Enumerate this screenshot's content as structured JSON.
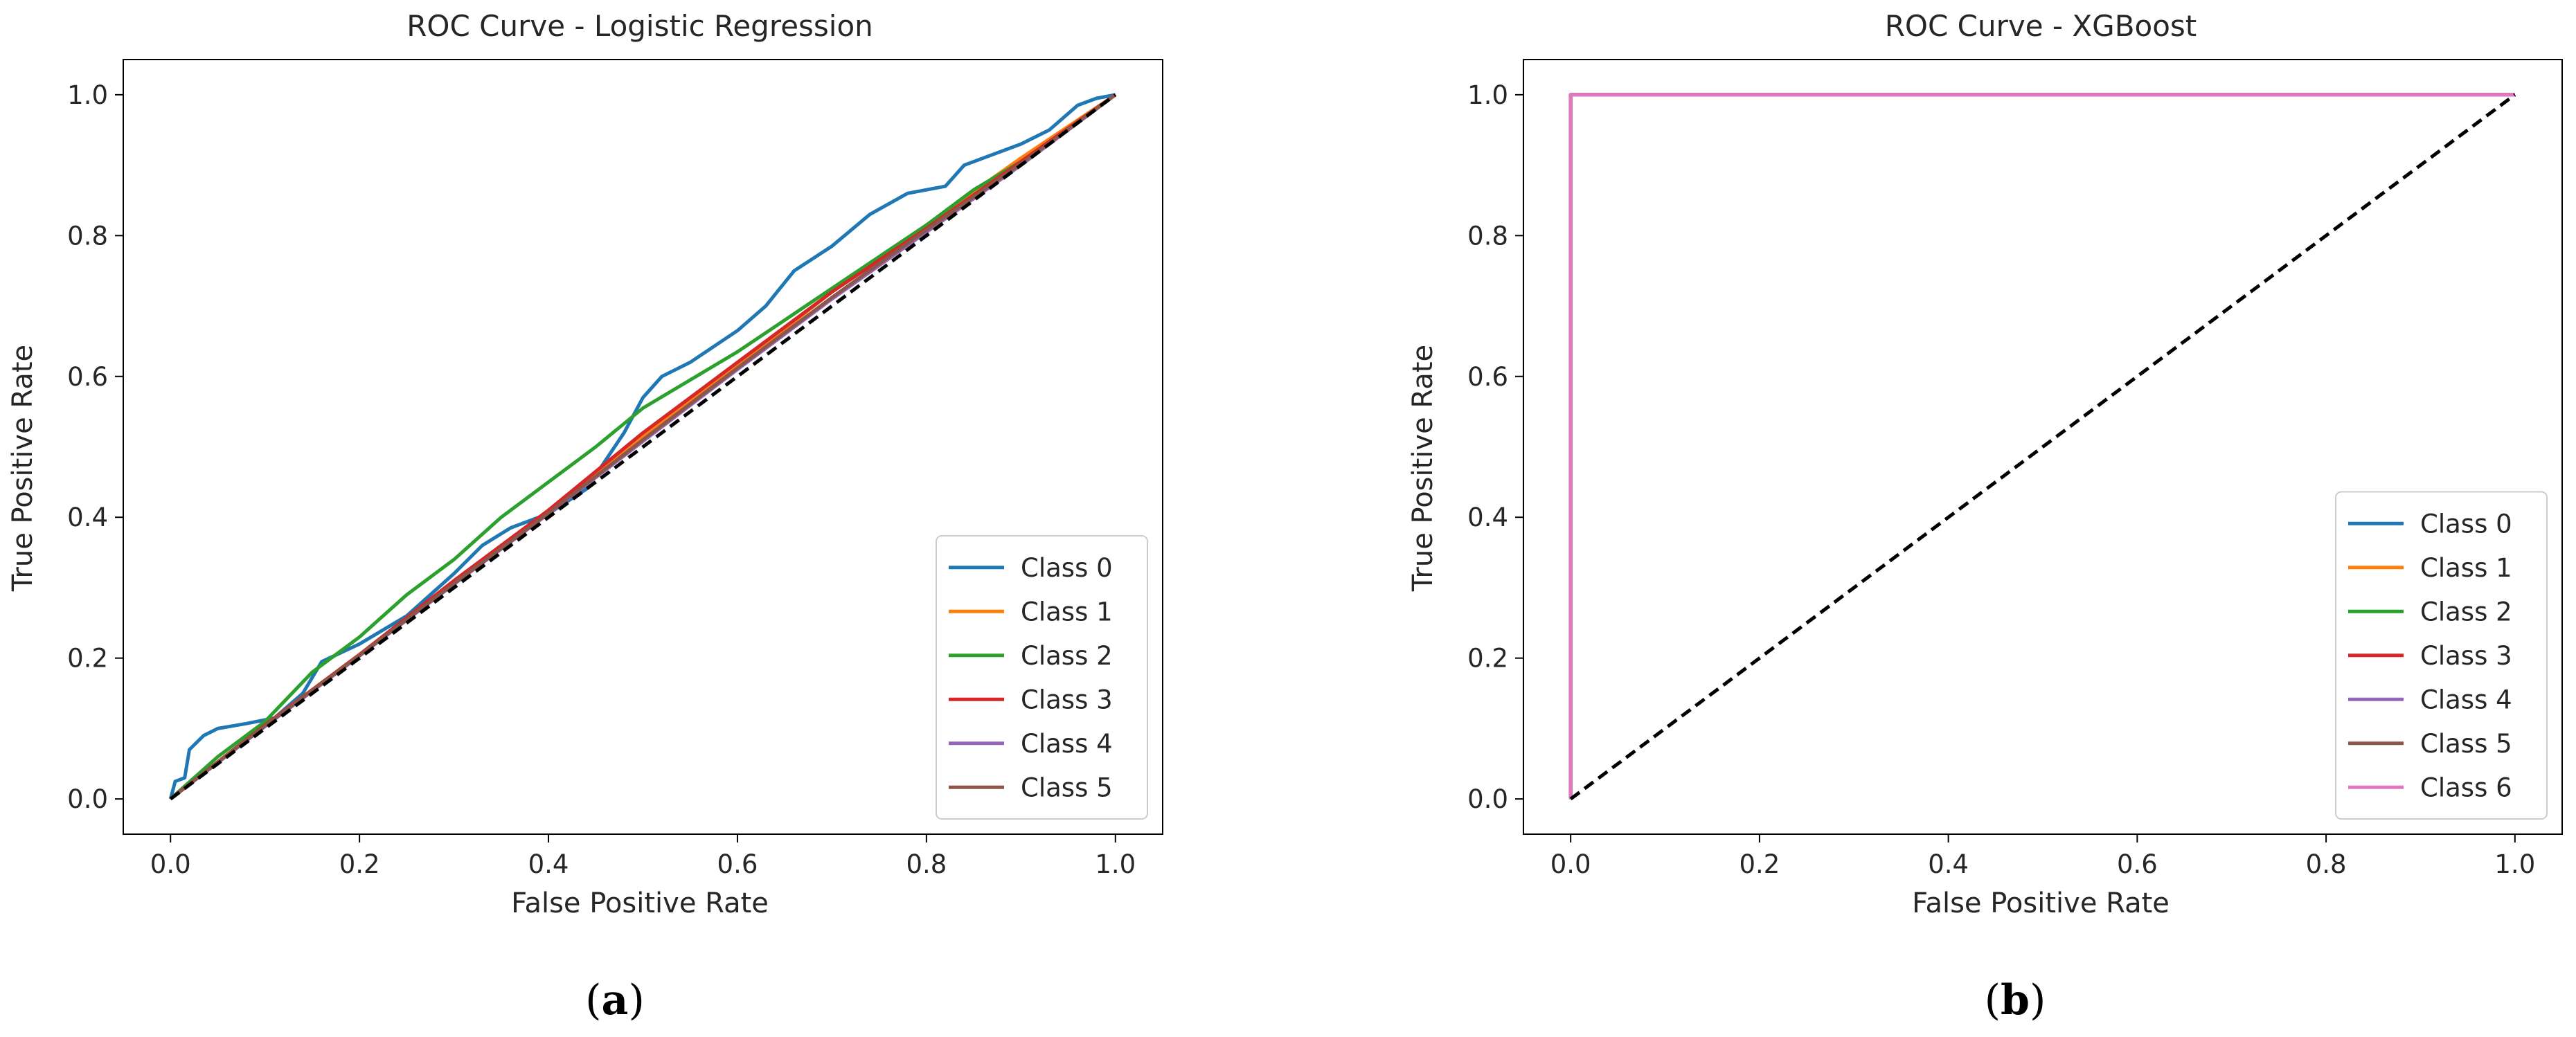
{
  "chart_data": [
    {
      "type": "line",
      "title": "ROC Curve - Logistic Regression",
      "xlabel": "False Positive Rate",
      "ylabel": "True Positive Rate",
      "xlim": [
        -0.05,
        1.05
      ],
      "ylim": [
        -0.05,
        1.05
      ],
      "xticks": [
        0.0,
        0.2,
        0.4,
        0.6,
        0.8,
        1.0
      ],
      "yticks": [
        0.0,
        0.2,
        0.4,
        0.6,
        0.8,
        1.0
      ],
      "tick_labels": [
        "0.0",
        "0.2",
        "0.4",
        "0.6",
        "0.8",
        "1.0"
      ],
      "legend_position": "lower-right",
      "caption": {
        "open": "(",
        "letter": "a",
        "close": ")"
      },
      "series": [
        {
          "name": "Class 0",
          "color": "#1f77b4",
          "points": [
            [
              0,
              0
            ],
            [
              0.005,
              0.025
            ],
            [
              0.015,
              0.03
            ],
            [
              0.02,
              0.07
            ],
            [
              0.035,
              0.09
            ],
            [
              0.05,
              0.1
            ],
            [
              0.08,
              0.107
            ],
            [
              0.11,
              0.115
            ],
            [
              0.14,
              0.15
            ],
            [
              0.16,
              0.195
            ],
            [
              0.2,
              0.22
            ],
            [
              0.25,
              0.26
            ],
            [
              0.3,
              0.32
            ],
            [
              0.33,
              0.36
            ],
            [
              0.36,
              0.385
            ],
            [
              0.4,
              0.405
            ],
            [
              0.44,
              0.44
            ],
            [
              0.48,
              0.52
            ],
            [
              0.5,
              0.57
            ],
            [
              0.52,
              0.6
            ],
            [
              0.55,
              0.62
            ],
            [
              0.6,
              0.665
            ],
            [
              0.63,
              0.7
            ],
            [
              0.66,
              0.75
            ],
            [
              0.7,
              0.785
            ],
            [
              0.74,
              0.83
            ],
            [
              0.78,
              0.86
            ],
            [
              0.82,
              0.87
            ],
            [
              0.84,
              0.9
            ],
            [
              0.87,
              0.915
            ],
            [
              0.9,
              0.93
            ],
            [
              0.93,
              0.95
            ],
            [
              0.96,
              0.985
            ],
            [
              0.98,
              0.995
            ],
            [
              1,
              1
            ]
          ]
        },
        {
          "name": "Class 1",
          "color": "#ff7f0e",
          "points": [
            [
              0,
              0
            ],
            [
              0.1,
              0.105
            ],
            [
              0.2,
              0.205
            ],
            [
              0.3,
              0.305
            ],
            [
              0.4,
              0.41
            ],
            [
              0.5,
              0.515
            ],
            [
              0.6,
              0.615
            ],
            [
              0.7,
              0.72
            ],
            [
              0.8,
              0.815
            ],
            [
              0.9,
              0.91
            ],
            [
              1,
              1
            ]
          ]
        },
        {
          "name": "Class 2",
          "color": "#2ca02c",
          "points": [
            [
              0,
              0
            ],
            [
              0.05,
              0.06
            ],
            [
              0.1,
              0.11
            ],
            [
              0.15,
              0.18
            ],
            [
              0.2,
              0.23
            ],
            [
              0.25,
              0.29
            ],
            [
              0.3,
              0.34
            ],
            [
              0.35,
              0.4
            ],
            [
              0.4,
              0.45
            ],
            [
              0.45,
              0.5
            ],
            [
              0.5,
              0.555
            ],
            [
              0.55,
              0.595
            ],
            [
              0.6,
              0.635
            ],
            [
              0.65,
              0.68
            ],
            [
              0.7,
              0.725
            ],
            [
              0.75,
              0.77
            ],
            [
              0.8,
              0.815
            ],
            [
              0.85,
              0.865
            ],
            [
              0.9,
              0.905
            ],
            [
              0.95,
              0.95
            ],
            [
              1,
              1
            ]
          ]
        },
        {
          "name": "Class 3",
          "color": "#d62728",
          "points": [
            [
              0,
              0
            ],
            [
              0.1,
              0.105
            ],
            [
              0.2,
              0.205
            ],
            [
              0.3,
              0.31
            ],
            [
              0.4,
              0.41
            ],
            [
              0.5,
              0.52
            ],
            [
              0.6,
              0.62
            ],
            [
              0.7,
              0.72
            ],
            [
              0.8,
              0.81
            ],
            [
              0.9,
              0.905
            ],
            [
              1,
              1
            ]
          ]
        },
        {
          "name": "Class 4",
          "color": "#9467bd",
          "points": [
            [
              0,
              0
            ],
            [
              0.1,
              0.103
            ],
            [
              0.2,
              0.203
            ],
            [
              0.3,
              0.305
            ],
            [
              0.4,
              0.405
            ],
            [
              0.5,
              0.508
            ],
            [
              0.6,
              0.61
            ],
            [
              0.7,
              0.71
            ],
            [
              0.8,
              0.805
            ],
            [
              0.9,
              0.9
            ],
            [
              1,
              1
            ]
          ]
        },
        {
          "name": "Class 5",
          "color": "#8c564b",
          "points": [
            [
              0,
              0
            ],
            [
              0.1,
              0.104
            ],
            [
              0.2,
              0.204
            ],
            [
              0.3,
              0.306
            ],
            [
              0.4,
              0.406
            ],
            [
              0.5,
              0.51
            ],
            [
              0.6,
              0.612
            ],
            [
              0.7,
              0.712
            ],
            [
              0.8,
              0.808
            ],
            [
              0.9,
              0.902
            ],
            [
              1,
              1
            ]
          ]
        }
      ],
      "baseline": {
        "color": "#000000",
        "points": [
          [
            0,
            0
          ],
          [
            1,
            1
          ]
        ]
      }
    },
    {
      "type": "line",
      "title": "ROC Curve - XGBoost",
      "xlabel": "False Positive Rate",
      "ylabel": "True Positive Rate",
      "xlim": [
        -0.05,
        1.05
      ],
      "ylim": [
        -0.05,
        1.05
      ],
      "xticks": [
        0.0,
        0.2,
        0.4,
        0.6,
        0.8,
        1.0
      ],
      "yticks": [
        0.0,
        0.2,
        0.4,
        0.6,
        0.8,
        1.0
      ],
      "tick_labels": [
        "0.0",
        "0.2",
        "0.4",
        "0.6",
        "0.8",
        "1.0"
      ],
      "legend_position": "lower-right",
      "caption": {
        "open": "(",
        "letter": "b",
        "close": ")"
      },
      "series": [
        {
          "name": "Class 0",
          "color": "#1f77b4",
          "points": [
            [
              0,
              0
            ],
            [
              0,
              1
            ],
            [
              1,
              1
            ]
          ]
        },
        {
          "name": "Class 1",
          "color": "#ff7f0e",
          "points": [
            [
              0,
              0
            ],
            [
              0,
              1
            ],
            [
              1,
              1
            ]
          ]
        },
        {
          "name": "Class 2",
          "color": "#2ca02c",
          "points": [
            [
              0,
              0
            ],
            [
              0,
              1
            ],
            [
              1,
              1
            ]
          ]
        },
        {
          "name": "Class 3",
          "color": "#d62728",
          "points": [
            [
              0,
              0
            ],
            [
              0,
              1
            ],
            [
              1,
              1
            ]
          ]
        },
        {
          "name": "Class 4",
          "color": "#9467bd",
          "points": [
            [
              0,
              0
            ],
            [
              0,
              1
            ],
            [
              1,
              1
            ]
          ]
        },
        {
          "name": "Class 5",
          "color": "#8c564b",
          "points": [
            [
              0,
              0
            ],
            [
              0,
              1
            ],
            [
              1,
              1
            ]
          ]
        },
        {
          "name": "Class 6",
          "color": "#e377c2",
          "points": [
            [
              0,
              0
            ],
            [
              0,
              1
            ],
            [
              1,
              1
            ]
          ]
        }
      ],
      "baseline": {
        "color": "#000000",
        "points": [
          [
            0,
            0
          ],
          [
            1,
            1
          ]
        ]
      }
    }
  ]
}
